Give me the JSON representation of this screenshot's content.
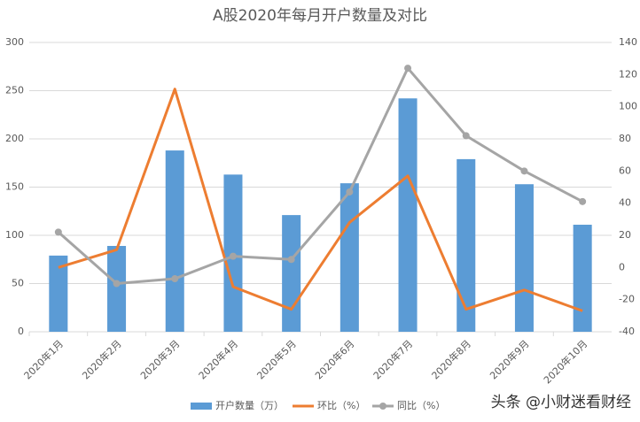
{
  "chart_data": {
    "type": "bar-line",
    "title": "A股2020年每月开户数量及对比",
    "categories": [
      "2020年1月",
      "2020年2月",
      "2020年3月",
      "2020年4月",
      "2020年5月",
      "2020年6月",
      "2020年7月",
      "2020年8月",
      "2020年9月",
      "2020年10月"
    ],
    "series": [
      {
        "name": "开户数量（万）",
        "type": "bar",
        "color": "#5b9bd5",
        "values": [
          79,
          89,
          188,
          163,
          121,
          154,
          242,
          179,
          153,
          111
        ]
      },
      {
        "name": "环比（%）",
        "type": "line",
        "axis": "y2",
        "color": "#ed7d31",
        "values": [
          0,
          11,
          111,
          -12,
          -26,
          28,
          57,
          -26,
          -14,
          -27
        ]
      },
      {
        "name": "同比（%）",
        "type": "line",
        "axis": "y2",
        "color": "#a5a5a5",
        "marker": true,
        "values": [
          22,
          -10,
          -7,
          7,
          5,
          47,
          124,
          82,
          60,
          41
        ]
      }
    ],
    "ylim": [
      0,
      300
    ],
    "yticks": [
      0,
      50,
      100,
      150,
      200,
      250,
      300
    ],
    "y2lim": [
      -40,
      140
    ],
    "y2ticks": [
      -40,
      -20,
      0,
      20,
      40,
      60,
      80,
      100,
      120,
      140
    ],
    "grid": true,
    "legend": "bottom",
    "watermark": "头条 @小财迷看财经"
  }
}
